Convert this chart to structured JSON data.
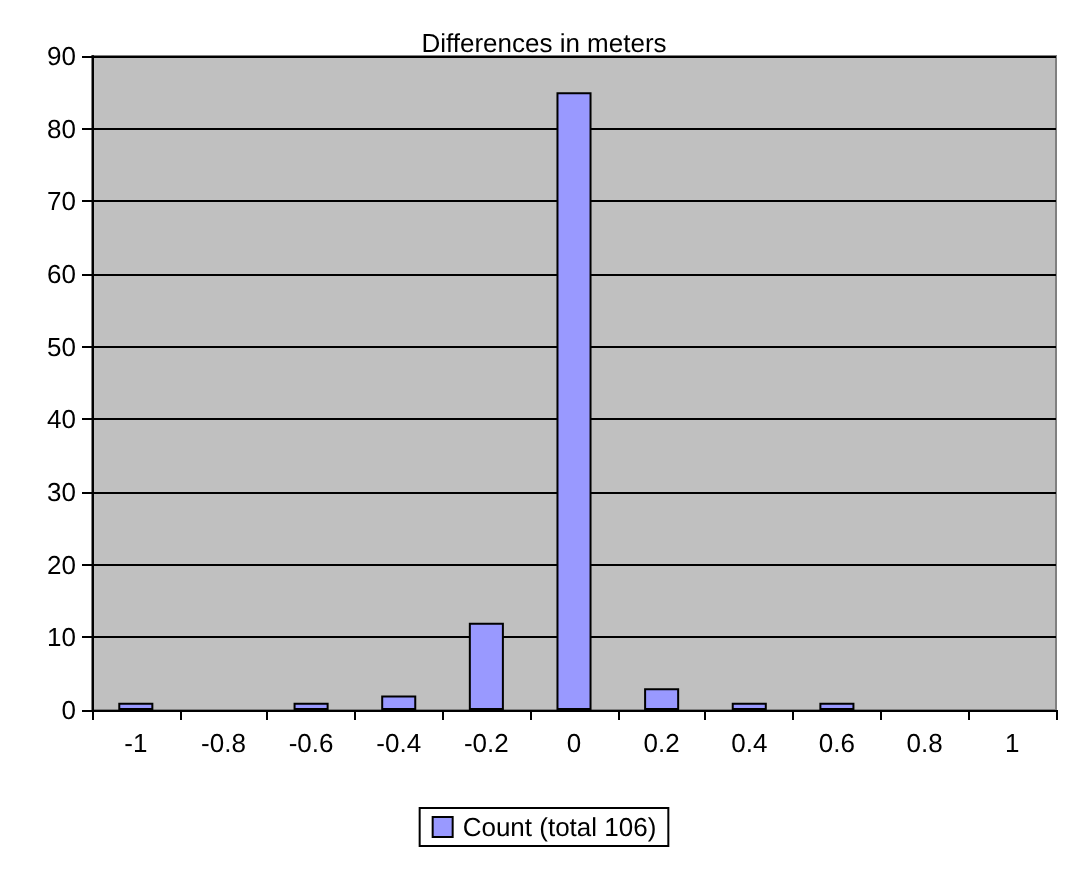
{
  "chart_data": {
    "type": "bar",
    "title": "Differences in meters",
    "categories": [
      "-1",
      "-0.8",
      "-0.6",
      "-0.4",
      "-0.2",
      "0",
      "0.2",
      "0.4",
      "0.6",
      "0.8",
      "1"
    ],
    "series": [
      {
        "name": "Count (total 106)",
        "color": "#9999ff",
        "values": [
          1,
          0,
          1,
          2,
          12,
          85,
          3,
          1,
          1,
          0,
          0
        ]
      }
    ],
    "ylim": [
      0,
      90
    ],
    "yticks": [
      0,
      10,
      20,
      30,
      40,
      50,
      60,
      70,
      80,
      90
    ],
    "grid": "y",
    "legend": "bottom"
  }
}
